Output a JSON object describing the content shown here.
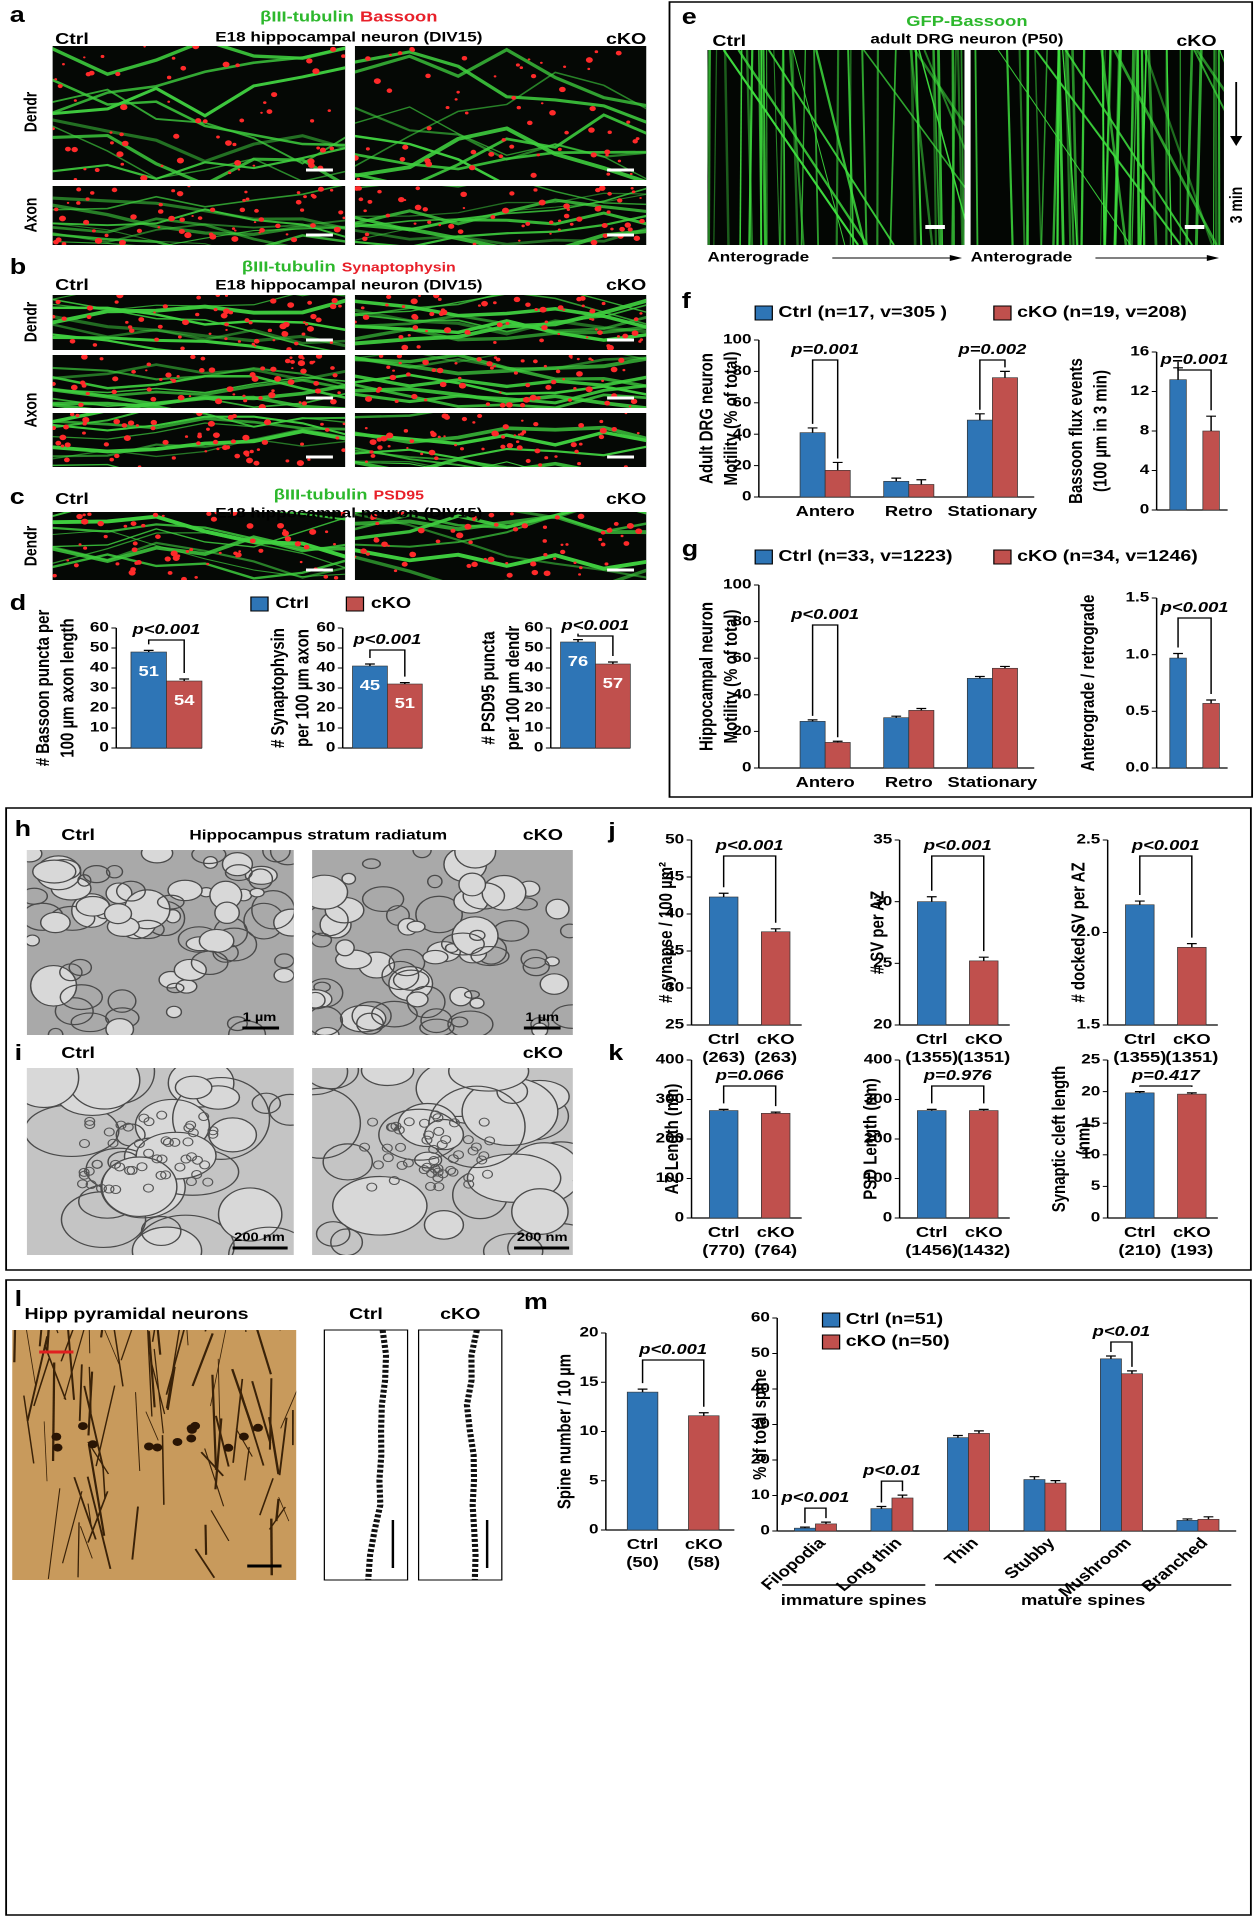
{
  "panel_letters": [
    "a",
    "b",
    "c",
    "d",
    "e",
    "f",
    "g",
    "h",
    "i",
    "j",
    "k",
    "l",
    "m"
  ],
  "panel_a": {
    "title": [
      "βIII-tubulin",
      "Bassoon"
    ],
    "subtitle": "E18 hippocampal neuron (DIV15)",
    "groups": [
      "Ctrl",
      "cKO"
    ],
    "rows": [
      "Dendr",
      "Axon"
    ]
  },
  "panel_b": {
    "title": [
      "βIII-tubulin",
      "Synaptophysin"
    ],
    "subtitle": "E18 hippocampal neuron (DIV15)",
    "groups": [
      "Ctrl",
      "cKO"
    ],
    "rows": [
      "Dendr",
      "Axon"
    ]
  },
  "panel_c": {
    "title": [
      "βIII-tubulin",
      "PSD95"
    ],
    "subtitle": "E18 hippocampal neuron (DIV15)",
    "groups": [
      "Ctrl",
      "cKO"
    ],
    "rows": [
      "Dendr"
    ]
  },
  "panel_d": {
    "legend": [
      {
        "name": "Ctrl",
        "color": "#2e75b6"
      },
      {
        "name": "cKO",
        "color": "#c0504d"
      }
    ]
  },
  "panel_e": {
    "title": "GFP-Bassoon",
    "subtitle": "adult DRG neuron (P50)",
    "groups": [
      "Ctrl",
      "cKO"
    ],
    "direction": [
      "Anterograde",
      "Anterograde"
    ],
    "time": "3 min"
  },
  "panel_h": {
    "title": "Hippocampus stratum radiatum",
    "groups": [
      "Ctrl",
      "cKO"
    ],
    "scale_bars": [
      "1 µm",
      "1 µm"
    ]
  },
  "panel_i": {
    "groups": [
      "Ctrl",
      "cKO"
    ],
    "scale_bars": [
      "200 nm",
      "200 nm"
    ]
  },
  "panel_l": {
    "title": "Hipp pyramidal neurons",
    "groups": [
      "Ctrl",
      "cKO"
    ]
  },
  "chart_data": [
    {
      "type": "bar",
      "ylabel": [
        "# Bassoon puncta per",
        "100 µm axon length"
      ],
      "values": [
        48,
        33.5
      ],
      "errors": [
        0.8,
        1
      ],
      "colors": [
        "#2e75b6",
        "#c0504d"
      ],
      "bar_labels": [
        "51",
        "54"
      ],
      "annotation": "p<0.001",
      "ylim": [
        0,
        60
      ],
      "yticks": [
        0,
        10,
        20,
        30,
        40,
        50,
        60
      ]
    },
    {
      "type": "bar",
      "ylabel": [
        "# Synaptophysin",
        "per 100 µm axon"
      ],
      "values": [
        41,
        32
      ],
      "errors": [
        1,
        0.7
      ],
      "colors": [
        "#2e75b6",
        "#c0504d"
      ],
      "bar_labels": [
        "45",
        "51"
      ],
      "annotation": "p<0.001",
      "ylim": [
        0,
        60
      ],
      "yticks": [
        0,
        10,
        20,
        30,
        40,
        50,
        60
      ]
    },
    {
      "type": "bar",
      "ylabel": [
        "# PSD95 puncta",
        "per 100 µm dendr"
      ],
      "values": [
        53,
        42
      ],
      "errors": [
        1.2,
        1
      ],
      "colors": [
        "#2e75b6",
        "#c0504d"
      ],
      "bar_labels": [
        "76",
        "57"
      ],
      "annotation": "p<0.001",
      "ylim": [
        0,
        60
      ],
      "yticks": [
        0,
        10,
        20,
        30,
        40,
        50,
        60
      ]
    },
    {
      "type": "grouped-bar",
      "ylabel": [
        "Adult DRG neuron",
        "Motility (% of total)"
      ],
      "categories": [
        "Antero",
        "Retro",
        "Stationary"
      ],
      "series": [
        {
          "name": "Ctrl (n=17, v=305  )",
          "color": "#2e75b6",
          "values": [
            41,
            10,
            49
          ],
          "errors": [
            3,
            2,
            4
          ]
        },
        {
          "name": "cKO (n=19, v=208)",
          "color": "#c0504d",
          "values": [
            17,
            8,
            76
          ],
          "errors": [
            5,
            3,
            4
          ]
        }
      ],
      "annotations": [
        "p=0.001",
        null,
        "p=0.002"
      ],
      "ylim": [
        0,
        100
      ],
      "yticks": [
        0,
        20,
        40,
        60,
        80,
        100
      ]
    },
    {
      "type": "bar",
      "ylabel": [
        "Bassoon flux events",
        "(100 µm in 3 min)"
      ],
      "values": [
        13.2,
        8
      ],
      "errors": [
        1.2,
        1.5
      ],
      "colors": [
        "#2e75b6",
        "#c0504d"
      ],
      "annotation": "p=0.001",
      "ylim": [
        0,
        16
      ],
      "yticks": [
        0,
        4,
        8,
        12,
        16
      ]
    },
    {
      "type": "grouped-bar",
      "ylabel": [
        "Hippocampal neuron",
        "Motility (% of total)"
      ],
      "categories": [
        "Antero",
        "Retro",
        "Stationary"
      ],
      "series": [
        {
          "name": "Ctrl (n=33, v=1223)",
          "color": "#2e75b6",
          "values": [
            25.5,
            27.5,
            49
          ],
          "errors": [
            0.8,
            0.8,
            1
          ]
        },
        {
          "name": "cKO (n=34, v=1246)",
          "color": "#c0504d",
          "values": [
            14,
            31.5,
            54.5
          ],
          "errors": [
            0.6,
            1,
            1
          ]
        }
      ],
      "annotations": [
        "p<0.001",
        null,
        null
      ],
      "ylim": [
        0,
        100
      ],
      "yticks": [
        0,
        20,
        40,
        60,
        80,
        100
      ]
    },
    {
      "type": "bar",
      "ylabel": "Anterograde / retrograde",
      "values": [
        0.97,
        0.57
      ],
      "errors": [
        0.04,
        0.03
      ],
      "colors": [
        "#2e75b6",
        "#c0504d"
      ],
      "annotation": "p<0.001",
      "ylim": [
        0,
        1.5
      ],
      "yticks": [
        {
          "value": 0,
          "label": "0.0"
        },
        0.5,
        {
          "value": 1,
          "label": "1.0"
        },
        1.5
      ]
    },
    {
      "type": "bar",
      "ylabel": "# synapse / 100 µm²",
      "categories": [
        "Ctrl",
        "cKO"
      ],
      "n_labels": [
        "(263)",
        "(263)"
      ],
      "values": [
        42.3,
        37.6
      ],
      "errors": [
        0.5,
        0.4
      ],
      "colors": [
        "#2e75b6",
        "#c0504d"
      ],
      "annotation": "p<0.001",
      "ylim": [
        25,
        50
      ],
      "yticks": [
        25,
        30,
        35,
        40,
        45,
        50
      ]
    },
    {
      "type": "bar",
      "ylabel": "# SV per AZ",
      "categories": [
        "Ctrl",
        "cKO"
      ],
      "n_labels": [
        "(1355)",
        "(1351)"
      ],
      "values": [
        30,
        25.2
      ],
      "errors": [
        0.4,
        0.3
      ],
      "colors": [
        "#2e75b6",
        "#c0504d"
      ],
      "annotation": "p<0.001",
      "ylim": [
        20,
        35
      ],
      "yticks": [
        20,
        25,
        30,
        35
      ]
    },
    {
      "type": "bar",
      "ylabel": "# docked SV per AZ",
      "categories": [
        "Ctrl",
        "cKO"
      ],
      "n_labels": [
        "(1355)",
        "(1351)"
      ],
      "values": [
        2.15,
        1.92
      ],
      "errors": [
        0.02,
        0.02
      ],
      "colors": [
        "#2e75b6",
        "#c0504d"
      ],
      "annotation": "p<0.001",
      "ylim": [
        1.5,
        2.5
      ],
      "yticks": [
        1.5,
        {
          "value": 2,
          "label": "2.0"
        },
        2.5
      ]
    },
    {
      "type": "bar",
      "ylabel": "AZ Length (nm)",
      "categories": [
        "Ctrl",
        "cKO"
      ],
      "n_labels": [
        "(770)",
        "(764)"
      ],
      "values": [
        272,
        265
      ],
      "errors": [
        3,
        3
      ],
      "colors": [
        "#2e75b6",
        "#c0504d"
      ],
      "annotation": "p=0.066",
      "ylim": [
        0,
        400
      ],
      "yticks": [
        0,
        100,
        200,
        300,
        400
      ]
    },
    {
      "type": "bar",
      "ylabel": "PSD Length (nm)",
      "categories": [
        "Ctrl",
        "cKO"
      ],
      "n_labels": [
        "(1456)",
        "(1432)"
      ],
      "values": [
        272,
        272
      ],
      "errors": [
        3,
        3
      ],
      "colors": [
        "#2e75b6",
        "#c0504d"
      ],
      "annotation": "p=0.976",
      "ylim": [
        0,
        400
      ],
      "yticks": [
        0,
        100,
        200,
        300,
        400
      ]
    },
    {
      "type": "bar",
      "ylabel": [
        "Synaptic cleft length",
        "(nm)"
      ],
      "categories": [
        "Ctrl",
        "cKO"
      ],
      "n_labels": [
        "(210)",
        "(193)"
      ],
      "values": [
        19.8,
        19.6
      ],
      "errors": [
        0.2,
        0.2
      ],
      "colors": [
        "#2e75b6",
        "#c0504d"
      ],
      "annotation": "p=0.417",
      "ylim": [
        0,
        25
      ],
      "yticks": [
        0,
        5,
        10,
        15,
        20,
        25
      ]
    },
    {
      "type": "bar",
      "ylabel": "Spine number / 10 µm",
      "categories": [
        "Ctrl",
        "cKO"
      ],
      "n_labels": [
        "(50)",
        "(58)"
      ],
      "values": [
        14,
        11.6
      ],
      "errors": [
        0.3,
        0.3
      ],
      "colors": [
        "#2e75b6",
        "#c0504d"
      ],
      "annotation": "p<0.001",
      "ylim": [
        0,
        20
      ],
      "yticks": [
        0,
        5,
        10,
        15,
        20
      ]
    },
    {
      "type": "grouped-bar",
      "ylabel": "% of total spine",
      "categories": [
        "Filopodia",
        "Long thin",
        "Thin",
        "Stubby",
        "Mushroom",
        "Branched"
      ],
      "series": [
        {
          "name": "Ctrl (n=51)",
          "color": "#2e75b6",
          "values": [
            0.8,
            6.3,
            26.3,
            14.5,
            48.5,
            3
          ],
          "errors": [
            0.3,
            0.6,
            0.6,
            0.8,
            0.8,
            0.4
          ]
        },
        {
          "name": "cKO (n=50)",
          "color": "#c0504d",
          "values": [
            2,
            9.3,
            27.5,
            13.5,
            44.3,
            3.3
          ],
          "errors": [
            0.5,
            0.8,
            0.7,
            0.7,
            0.8,
            0.7
          ]
        }
      ],
      "annotations": [
        "p<0.001",
        "p<0.01",
        null,
        null,
        "p<0.01",
        null
      ],
      "group_labels": [
        "immature spines",
        "mature spines"
      ],
      "ylim": [
        0,
        60
      ],
      "yticks": [
        0,
        10,
        20,
        30,
        40,
        50,
        60
      ]
    }
  ]
}
